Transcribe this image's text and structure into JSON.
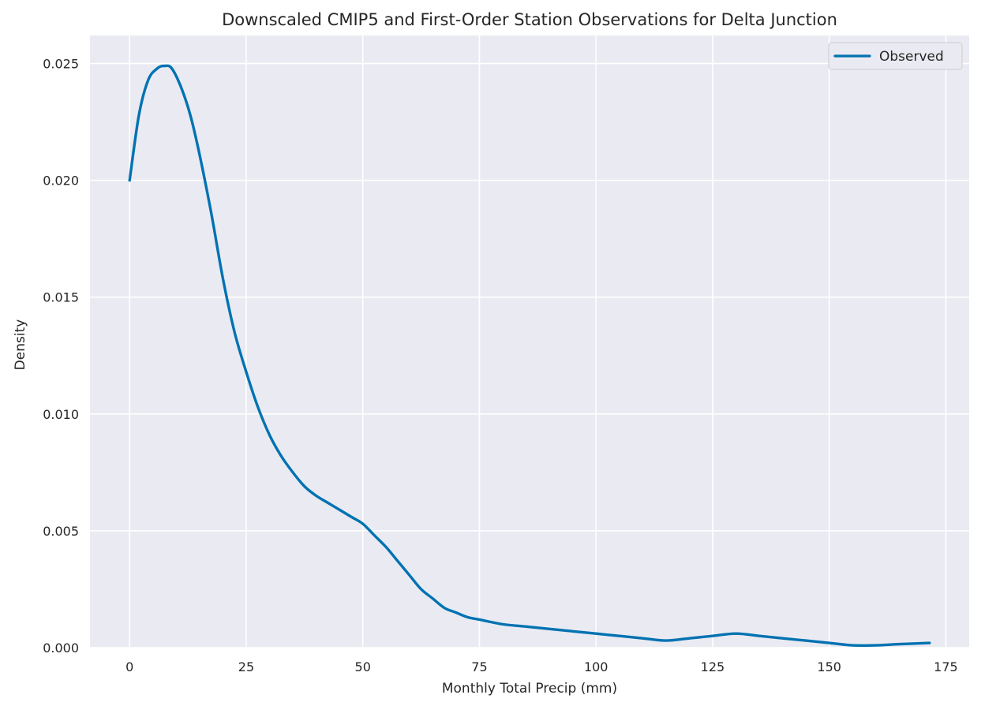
{
  "chart_data": {
    "type": "line",
    "title": "Downscaled CMIP5 and First-Order Station Observations for Delta Junction",
    "xlabel": "Monthly Total Precip (mm)",
    "ylabel": "Density",
    "xlim": [
      -8.5,
      180
    ],
    "ylim": [
      0,
      0.0262
    ],
    "xticks": [
      0,
      25,
      50,
      75,
      100,
      125,
      150,
      175
    ],
    "yticks": [
      0.0,
      0.005,
      0.01,
      0.015,
      0.02,
      0.025
    ],
    "xtick_labels": [
      "0",
      "25",
      "50",
      "75",
      "100",
      "125",
      "150",
      "175"
    ],
    "ytick_labels": [
      "0.000",
      "0.005",
      "0.010",
      "0.015",
      "0.020",
      "0.025"
    ],
    "grid": true,
    "legend": {
      "position": "upper right",
      "entries": [
        "Observed"
      ]
    },
    "series": [
      {
        "name": "Observed",
        "color": "#0072b2",
        "x": [
          0,
          2,
          4,
          6,
          7.5,
          9,
          11,
          13,
          15,
          17.5,
          20,
          22.5,
          25,
          27.5,
          30,
          32.5,
          35,
          37.5,
          40,
          42.5,
          45,
          47.5,
          50,
          52.5,
          55,
          57.5,
          60,
          62.5,
          65,
          67.5,
          70,
          72.5,
          75,
          80,
          85,
          90,
          95,
          100,
          105,
          110,
          115,
          120,
          125,
          130,
          135,
          140,
          145,
          150,
          155,
          160,
          165,
          171.5
        ],
        "y": [
          0.02,
          0.0228,
          0.0243,
          0.0248,
          0.0249,
          0.0248,
          0.024,
          0.0228,
          0.0211,
          0.0186,
          0.0158,
          0.0135,
          0.0118,
          0.0103,
          0.0091,
          0.0082,
          0.0075,
          0.0069,
          0.0065,
          0.0062,
          0.0059,
          0.0056,
          0.0053,
          0.0048,
          0.0043,
          0.0037,
          0.0031,
          0.0025,
          0.0021,
          0.0017,
          0.0015,
          0.0013,
          0.0012,
          0.001,
          0.0009,
          0.0008,
          0.0007,
          0.0006,
          0.0005,
          0.0004,
          0.0003,
          0.0004,
          0.0005,
          0.0006,
          0.0005,
          0.0004,
          0.0003,
          0.0002,
          0.0001,
          0.0001,
          0.00015,
          0.0002
        ]
      }
    ]
  }
}
